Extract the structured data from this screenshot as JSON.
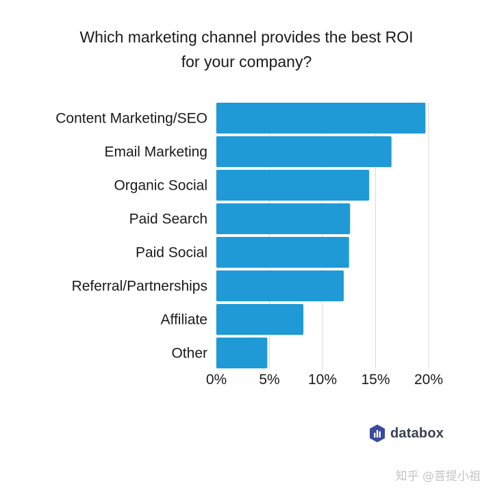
{
  "chart_data": {
    "type": "bar",
    "orientation": "horizontal",
    "title_lines": [
      "Which marketing channel provides the best ROI",
      "for your company?"
    ],
    "categories": [
      "Content Marketing/SEO",
      "Email Marketing",
      "Organic Social",
      "Paid Search",
      "Paid Social",
      "Referral/Partnerships",
      "Affiliate",
      "Other"
    ],
    "values": [
      19.7,
      16.5,
      14.4,
      12.6,
      12.5,
      12.0,
      8.2,
      4.8
    ],
    "x_ticks": [
      "0%",
      "5%",
      "10%",
      "15%",
      "20%"
    ],
    "xlim": [
      0,
      20
    ],
    "grid": true,
    "bar_color": "#1f9ad6"
  },
  "branding": {
    "logo_text": "databox",
    "logo_icon": "databox-bars-logo"
  },
  "watermark": {
    "text": "知乎 @菩提小祖"
  }
}
